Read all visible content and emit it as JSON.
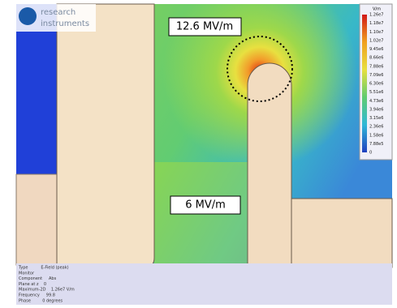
{
  "logo": {
    "line1": "research",
    "line2": "instruments"
  },
  "annotations": {
    "peak": "12.6 MV/m",
    "gap": "6 MV/m"
  },
  "colorbar": {
    "unit": "V/m",
    "labels": [
      "1.26e7",
      "1.18e7",
      "1.10e7",
      "1.02e7",
      "9.45e6",
      "8.66e6",
      "7.88e6",
      "7.09e6",
      "6.30e6",
      "5.51e6",
      "4.73e6",
      "3.94e6",
      "3.15e6",
      "2.36e6",
      "1.58e6",
      "7.88e5",
      "0"
    ]
  },
  "info": {
    "lines": [
      "Type          E-Field (peak)",
      "Monitor",
      "Component     Abs",
      "Plane at z    0",
      "Maximum-2D    1.26e7 V/m",
      "Frequency     99.8",
      "Phase         0 degrees"
    ]
  }
}
